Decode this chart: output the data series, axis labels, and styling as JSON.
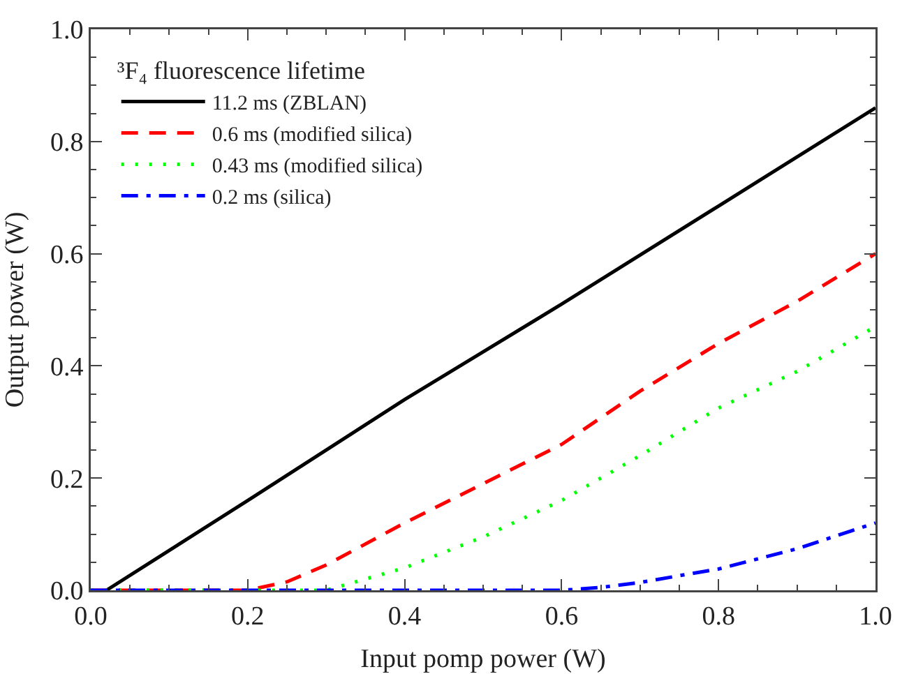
{
  "chart_data": {
    "type": "line",
    "xlabel": "Input pomp power (W)",
    "ylabel": "Output power (W)",
    "legend_title": "³F₄ fluorescence lifetime",
    "legend": "top left",
    "grid": false,
    "marker": "none",
    "xlim": [
      0,
      1
    ],
    "ylim": [
      0,
      1
    ],
    "xticks": [
      {
        "value": 0,
        "label": "0.0"
      },
      {
        "value": 0.2,
        "label": "0.2"
      },
      {
        "value": 0.4,
        "label": "0.4"
      },
      {
        "value": 0.6,
        "label": "0.6"
      },
      {
        "value": 0.8,
        "label": "0.8"
      },
      {
        "value": 1,
        "label": "1.0"
      }
    ],
    "yticks": [
      {
        "value": 0,
        "label": "0.0"
      },
      {
        "value": 0.2,
        "label": "0.2"
      },
      {
        "value": 0.4,
        "label": "0.4"
      },
      {
        "value": 0.6,
        "label": "0.6"
      },
      {
        "value": 0.8,
        "label": "0.8"
      },
      {
        "value": 1,
        "label": "1.0"
      }
    ],
    "series": [
      {
        "name": "11.2 ms (ZBLAN)",
        "color": "#000000",
        "line_style": "solid",
        "x": [
          0.02,
          0.2,
          0.4,
          0.6,
          0.8,
          1.0
        ],
        "values": [
          0,
          0.16,
          0.34,
          0.51,
          0.685,
          0.86
        ]
      },
      {
        "name": "0.6 ms (modified silica)",
        "color": "#ff0000",
        "line_style": "dashed",
        "x": [
          0,
          0.2,
          0.25,
          0.3,
          0.4,
          0.5,
          0.6,
          0.7,
          0.8,
          0.9,
          1.0
        ],
        "values": [
          0,
          0,
          0.015,
          0.045,
          0.12,
          0.19,
          0.26,
          0.355,
          0.44,
          0.515,
          0.6
        ]
      },
      {
        "name": "0.43 ms (modified silica)",
        "color": "#00ff00",
        "line_style": "dotted",
        "x": [
          0,
          0.3,
          0.35,
          0.4,
          0.5,
          0.6,
          0.7,
          0.8,
          0.9,
          1.0
        ],
        "values": [
          0,
          0,
          0.02,
          0.04,
          0.095,
          0.16,
          0.24,
          0.325,
          0.39,
          0.47
        ]
      },
      {
        "name": "0.2 ms (silica)",
        "color": "#0000ff",
        "line_style": "dashdot",
        "x": [
          0,
          0.6,
          0.65,
          0.7,
          0.8,
          0.9,
          1.0
        ],
        "values": [
          0,
          0,
          0.005,
          0.014,
          0.038,
          0.074,
          0.12
        ]
      }
    ]
  }
}
